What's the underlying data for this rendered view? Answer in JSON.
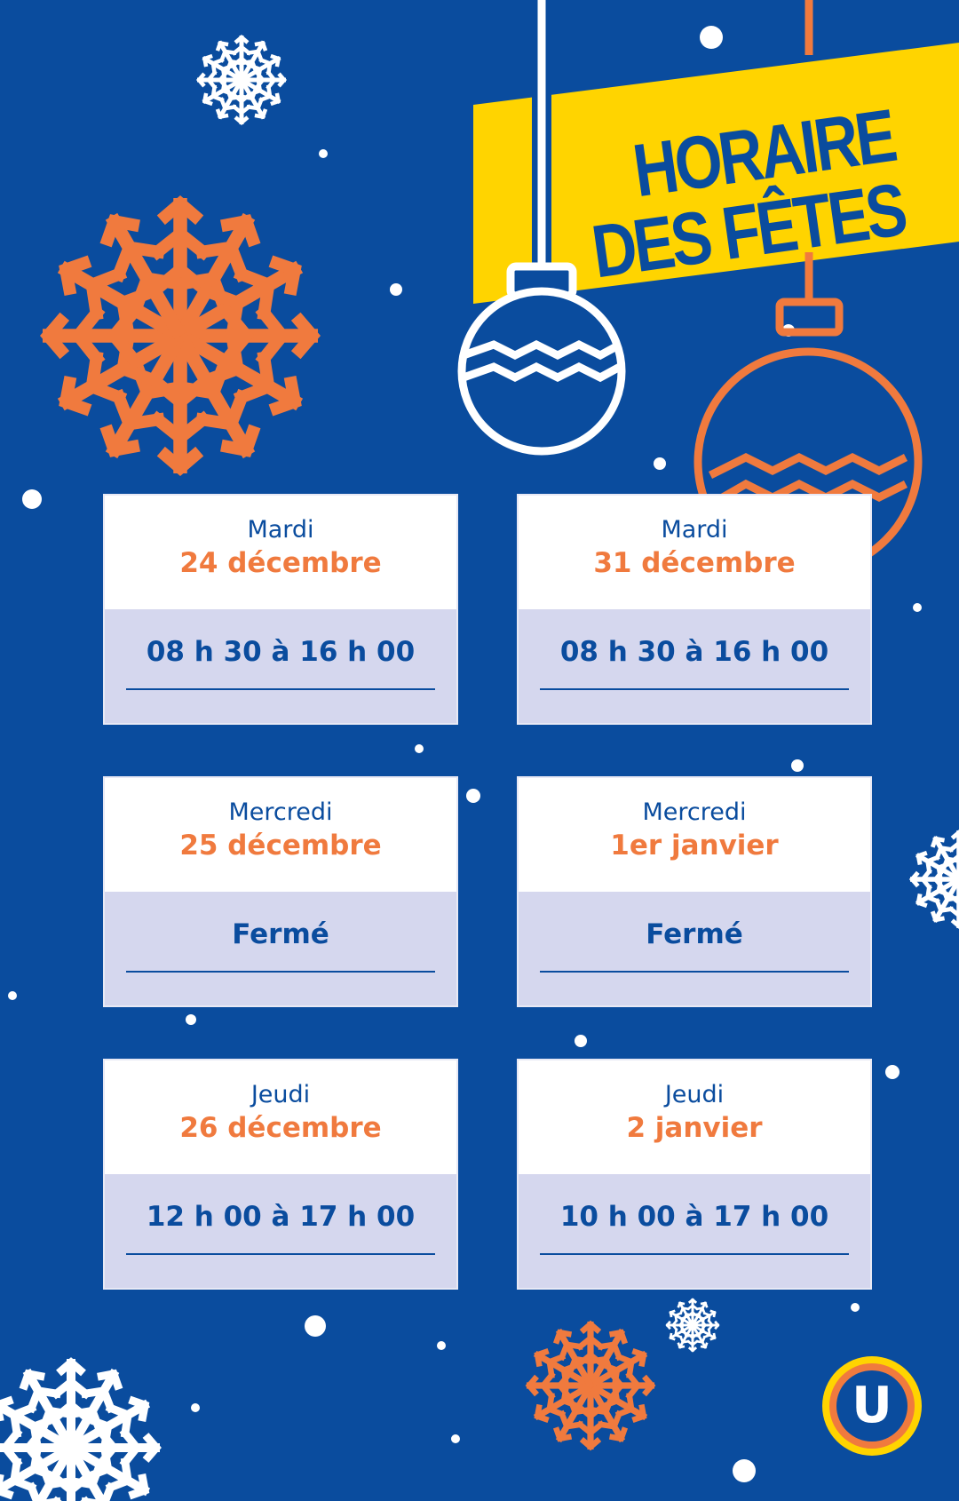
{
  "title": {
    "line1": "HORAIRE",
    "line2": "DES FÊTES"
  },
  "colors": {
    "background": "#0a4c9e",
    "accent": "#f07a3e",
    "banner": "#ffd400",
    "hours_bg": "#d5d7ee"
  },
  "schedule": [
    {
      "day": "Mardi",
      "date": "24 décembre",
      "hours": "08 h 30 à 16 h 00"
    },
    {
      "day": "Mardi",
      "date": "31 décembre",
      "hours": "08 h 30 à 16 h 00"
    },
    {
      "day": "Mercredi",
      "date": "25 décembre",
      "hours": "Fermé"
    },
    {
      "day": "Mercredi",
      "date": "1er janvier",
      "hours": "Fermé"
    },
    {
      "day": "Jeudi",
      "date": "26 décembre",
      "hours": "12 h 00 à 17 h 00"
    },
    {
      "day": "Jeudi",
      "date": "2 janvier",
      "hours": "10 h 00 à 17 h 00"
    }
  ],
  "logo": {
    "letter": "U"
  }
}
